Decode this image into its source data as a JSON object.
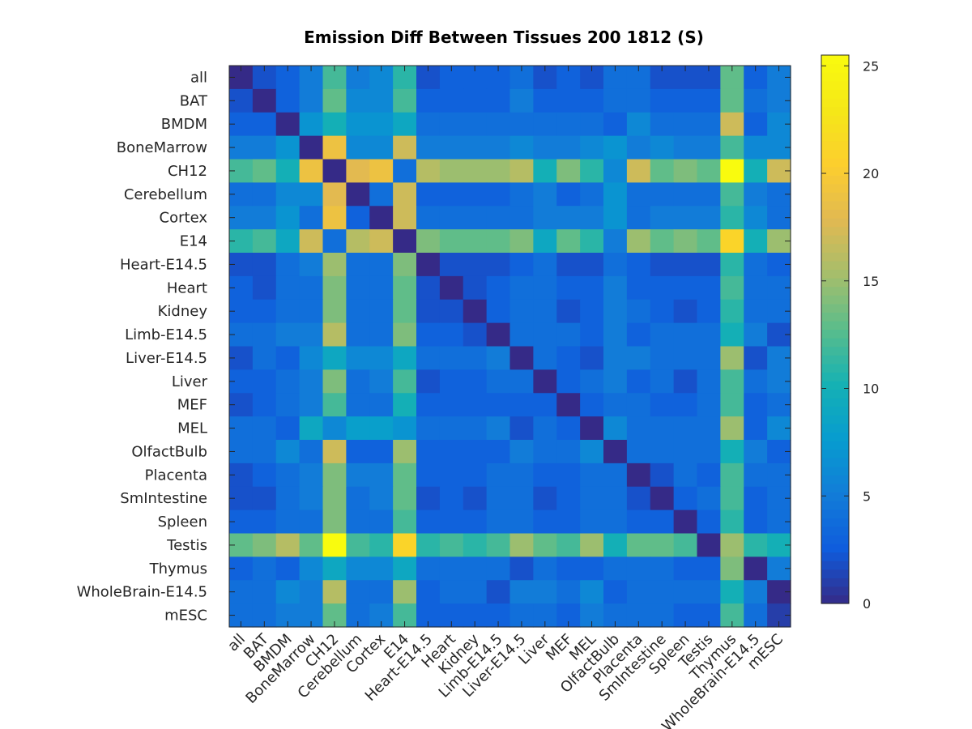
{
  "chart_data": {
    "type": "heatmap",
    "title": "Emission Diff Between Tissues 200 1812 (S)",
    "xlabel": "",
    "ylabel": "",
    "categories": [
      "all",
      "BAT",
      "BMDM",
      "BoneMarrow",
      "CH12",
      "Cerebellum",
      "Cortex",
      "E14",
      "Heart-E14.5",
      "Heart",
      "Kidney",
      "Limb-E14.5",
      "Liver-E14.5",
      "Liver",
      "MEF",
      "MEL",
      "OlfactBulb",
      "Placenta",
      "SmIntestine",
      "Spleen",
      "Testis",
      "Thymus",
      "WholeBrain-E14.5",
      "mESC"
    ],
    "colorbar": {
      "min": 0,
      "max": 25.5,
      "ticks": [
        0,
        5,
        10,
        15,
        20,
        25
      ],
      "colormap": "parula"
    },
    "grid": false,
    "values": [
      [
        0,
        2,
        3,
        5,
        12,
        5,
        6,
        11,
        2,
        3,
        3,
        3,
        4,
        2,
        3,
        2,
        4,
        4,
        2,
        2,
        2,
        13,
        3,
        5
      ],
      [
        2,
        0,
        3,
        5,
        13,
        6,
        6,
        12,
        3,
        3,
        3,
        3,
        5,
        3,
        3,
        3,
        4,
        4,
        3,
        3,
        3,
        13,
        4,
        5
      ],
      [
        3,
        3,
        0,
        7,
        10,
        7,
        7,
        9,
        4,
        4,
        4,
        4,
        4,
        4,
        4,
        4,
        3,
        6,
        4,
        4,
        4,
        17,
        3,
        6
      ],
      [
        5,
        5,
        7,
        0,
        19,
        6,
        6,
        17,
        5,
        5,
        5,
        5,
        6,
        5,
        5,
        6,
        7,
        5,
        6,
        5,
        5,
        12,
        6,
        6
      ],
      [
        12,
        13,
        10,
        19,
        0,
        18,
        19,
        4,
        16,
        15,
        15,
        15,
        16,
        10,
        14,
        11,
        6,
        17,
        13,
        14,
        13,
        25.5,
        10,
        17
      ],
      [
        4,
        4,
        6,
        6,
        18,
        0,
        4,
        17,
        3,
        3,
        3,
        3,
        4,
        5,
        3,
        4,
        7,
        4,
        4,
        4,
        4,
        12,
        5,
        4
      ],
      [
        5,
        5,
        7,
        4,
        19,
        3,
        0,
        17,
        4,
        4,
        4,
        4,
        4,
        5,
        5,
        5,
        7,
        4,
        5,
        5,
        5,
        11,
        6,
        4
      ],
      [
        11,
        12,
        9,
        17,
        4,
        16,
        17,
        0,
        14,
        13,
        13,
        13,
        14,
        9,
        13,
        11,
        5,
        15,
        13,
        14,
        13,
        21,
        10,
        15
      ],
      [
        2,
        2,
        4,
        5,
        15,
        4,
        4,
        14,
        0,
        2,
        2,
        2,
        3,
        4,
        2,
        2,
        4,
        3,
        2,
        2,
        2,
        11,
        4,
        3
      ],
      [
        3,
        2,
        4,
        4,
        14,
        4,
        4,
        13,
        2,
        0,
        2,
        3,
        4,
        4,
        3,
        3,
        5,
        3,
        3,
        3,
        3,
        12,
        4,
        4
      ],
      [
        3,
        3,
        4,
        4,
        14,
        4,
        4,
        13,
        2,
        2,
        0,
        3,
        4,
        4,
        2,
        3,
        5,
        4,
        3,
        2,
        3,
        11,
        4,
        4
      ],
      [
        4,
        4,
        5,
        5,
        16,
        4,
        4,
        14,
        3,
        3,
        2,
        0,
        4,
        4,
        4,
        3,
        5,
        3,
        4,
        4,
        4,
        10,
        5,
        2
      ],
      [
        2,
        4,
        3,
        6,
        9,
        6,
        6,
        9,
        4,
        4,
        4,
        5,
        0,
        4,
        3,
        2,
        5,
        5,
        4,
        4,
        4,
        15,
        2,
        5
      ],
      [
        3,
        3,
        4,
        5,
        14,
        4,
        5,
        12,
        2,
        3,
        3,
        4,
        4,
        0,
        3,
        4,
        5,
        3,
        4,
        2,
        4,
        12,
        4,
        5
      ],
      [
        2,
        3,
        4,
        5,
        12,
        4,
        4,
        10,
        3,
        3,
        3,
        3,
        3,
        3,
        0,
        3,
        4,
        4,
        3,
        3,
        4,
        12,
        3,
        4
      ],
      [
        4,
        4,
        3,
        9,
        6,
        8,
        8,
        7,
        4,
        4,
        4,
        5,
        2,
        4,
        3,
        0,
        6,
        4,
        4,
        4,
        4,
        15,
        3,
        6
      ],
      [
        4,
        4,
        6,
        4,
        17,
        3,
        3,
        15,
        3,
        3,
        3,
        3,
        5,
        4,
        4,
        6,
        0,
        4,
        4,
        4,
        4,
        10,
        5,
        3
      ],
      [
        2,
        3,
        4,
        5,
        14,
        5,
        5,
        13,
        3,
        3,
        3,
        4,
        4,
        3,
        3,
        4,
        4,
        0,
        2,
        4,
        3,
        12,
        4,
        4
      ],
      [
        2,
        2,
        4,
        5,
        14,
        4,
        5,
        13,
        2,
        3,
        2,
        4,
        4,
        2,
        3,
        4,
        4,
        2,
        0,
        3,
        4,
        12,
        3,
        4
      ],
      [
        3,
        3,
        4,
        4,
        14,
        4,
        4,
        12,
        3,
        3,
        3,
        4,
        4,
        3,
        3,
        4,
        4,
        3,
        3,
        0,
        3,
        11,
        3,
        4
      ],
      [
        13,
        14,
        16,
        13,
        25.5,
        12,
        11,
        21,
        11,
        12,
        11,
        12,
        15,
        13,
        12,
        15,
        10,
        13,
        13,
        12,
        0,
        15,
        11,
        10
      ],
      [
        3,
        4,
        3,
        6,
        9,
        6,
        6,
        9,
        4,
        4,
        4,
        4,
        2,
        4,
        3,
        3,
        4,
        4,
        4,
        3,
        3,
        14,
        0,
        5
      ],
      [
        4,
        4,
        6,
        5,
        16,
        4,
        4,
        15,
        3,
        4,
        4,
        2,
        5,
        5,
        4,
        6,
        3,
        4,
        4,
        4,
        4,
        10,
        5,
        0
      ],
      [
        4,
        4,
        5,
        5,
        13,
        4,
        5,
        12,
        3,
        3,
        3,
        3,
        4,
        4,
        3,
        5,
        4,
        4,
        4,
        3,
        3,
        12,
        4,
        1
      ]
    ]
  }
}
